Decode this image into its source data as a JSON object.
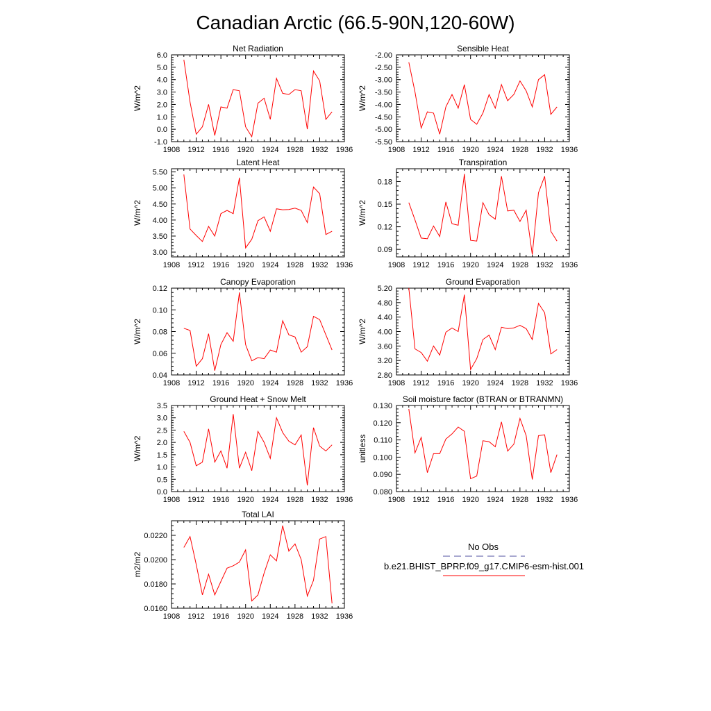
{
  "title": "Canadian Arctic (66.5-90N,120-60W)",
  "colors": {
    "model_line": "#ff0000",
    "obs_line": "#5050a0",
    "axes": "#000000"
  },
  "legend": {
    "obs_label": "No Obs",
    "model_label": "b.e21.BHIST_BPRP.f09_g17.CMIP6-esm-hist.001"
  },
  "chart_data": [
    {
      "type": "line",
      "title": "Net Radiation",
      "ylabel": "W/m^2",
      "xlim": [
        1908,
        1936
      ],
      "xticks": [
        1908,
        1912,
        1916,
        1920,
        1924,
        1928,
        1932,
        1936
      ],
      "ylim": [
        -1.0,
        6.0
      ],
      "yticks": [
        -1.0,
        0.0,
        1.0,
        2.0,
        3.0,
        4.0,
        5.0,
        6.0
      ],
      "ytick_labels": [
        "-1.0",
        "0.0",
        "1.0",
        "2.0",
        "3.0",
        "4.0",
        "5.0",
        "6.0"
      ],
      "series": [
        {
          "x": [
            1910,
            1911,
            1912,
            1913,
            1914,
            1915,
            1916,
            1917,
            1918,
            1919,
            1920,
            1921,
            1922,
            1923,
            1924,
            1925,
            1926,
            1927,
            1928,
            1929,
            1930,
            1931,
            1932,
            1933,
            1934
          ],
          "values": [
            5.6,
            2.2,
            -0.4,
            0.2,
            2.0,
            -0.5,
            1.8,
            1.7,
            3.2,
            3.1,
            0.2,
            -0.6,
            2.1,
            2.5,
            0.8,
            4.1,
            2.9,
            2.8,
            3.2,
            3.1,
            0.0,
            4.7,
            3.9,
            0.8,
            1.4
          ]
        }
      ]
    },
    {
      "type": "line",
      "title": "Sensible Heat",
      "ylabel": "W/m^2",
      "xlim": [
        1908,
        1936
      ],
      "xticks": [
        1908,
        1912,
        1916,
        1920,
        1924,
        1928,
        1932,
        1936
      ],
      "ylim": [
        -5.5,
        -2.0
      ],
      "yticks": [
        -5.5,
        -5.0,
        -4.5,
        -4.0,
        -3.5,
        -3.0,
        -2.5,
        -2.0
      ],
      "ytick_labels": [
        "-5.50",
        "-5.00",
        "-4.50",
        "-4.00",
        "-3.50",
        "-3.00",
        "-2.50",
        "-2.00"
      ],
      "series": [
        {
          "x": [
            1910,
            1911,
            1912,
            1913,
            1914,
            1915,
            1916,
            1917,
            1918,
            1919,
            1920,
            1921,
            1922,
            1923,
            1924,
            1925,
            1926,
            1927,
            1928,
            1929,
            1930,
            1931,
            1932,
            1933,
            1934
          ],
          "values": [
            -2.3,
            -3.5,
            -4.95,
            -4.3,
            -4.35,
            -5.2,
            -4.1,
            -3.6,
            -4.15,
            -3.2,
            -4.6,
            -4.8,
            -4.35,
            -3.6,
            -4.15,
            -3.2,
            -3.85,
            -3.6,
            -3.05,
            -3.45,
            -4.1,
            -3.0,
            -2.8,
            -4.4,
            -4.1
          ]
        }
      ]
    },
    {
      "type": "line",
      "title": "Latent Heat",
      "ylabel": "W/m^2",
      "xlim": [
        1908,
        1936
      ],
      "xticks": [
        1908,
        1912,
        1916,
        1920,
        1924,
        1928,
        1932,
        1936
      ],
      "ylim": [
        2.85,
        5.6
      ],
      "yticks": [
        3.0,
        3.5,
        4.0,
        4.5,
        5.0,
        5.5
      ],
      "ytick_labels": [
        "3.00",
        "3.50",
        "4.00",
        "4.50",
        "5.00",
        "5.50"
      ],
      "series": [
        {
          "x": [
            1910,
            1911,
            1912,
            1913,
            1914,
            1915,
            1916,
            1917,
            1918,
            1919,
            1920,
            1921,
            1922,
            1923,
            1924,
            1925,
            1926,
            1927,
            1928,
            1929,
            1930,
            1931,
            1932,
            1933,
            1934
          ],
          "values": [
            5.42,
            3.72,
            3.52,
            3.33,
            3.8,
            3.5,
            4.2,
            4.3,
            4.2,
            5.32,
            3.13,
            3.4,
            3.98,
            4.1,
            3.65,
            4.35,
            4.32,
            4.33,
            4.37,
            4.3,
            3.92,
            5.03,
            4.82,
            3.55,
            3.65
          ]
        }
      ]
    },
    {
      "type": "line",
      "title": "Transpiration",
      "ylabel": "W/m^2",
      "xlim": [
        1908,
        1936
      ],
      "xticks": [
        1908,
        1912,
        1916,
        1920,
        1924,
        1928,
        1932,
        1936
      ],
      "ylim": [
        0.08,
        0.197
      ],
      "yticks": [
        0.09,
        0.12,
        0.15,
        0.18
      ],
      "ytick_labels": [
        "0.09",
        "0.12",
        "0.15",
        "0.18"
      ],
      "series": [
        {
          "x": [
            1910,
            1911,
            1912,
            1913,
            1914,
            1915,
            1916,
            1917,
            1918,
            1919,
            1920,
            1921,
            1922,
            1923,
            1924,
            1925,
            1926,
            1927,
            1928,
            1929,
            1930,
            1931,
            1932,
            1933,
            1934
          ],
          "values": [
            0.152,
            0.129,
            0.105,
            0.104,
            0.121,
            0.107,
            0.153,
            0.124,
            0.122,
            0.19,
            0.102,
            0.101,
            0.152,
            0.136,
            0.13,
            0.187,
            0.141,
            0.142,
            0.127,
            0.142,
            0.083,
            0.165,
            0.187,
            0.114,
            0.101
          ]
        }
      ]
    },
    {
      "type": "line",
      "title": "Canopy Evaporation",
      "ylabel": "W/m^2",
      "xlim": [
        1908,
        1936
      ],
      "xticks": [
        1908,
        1912,
        1916,
        1920,
        1924,
        1928,
        1932,
        1936
      ],
      "ylim": [
        0.04,
        0.12
      ],
      "yticks": [
        0.04,
        0.06,
        0.08,
        0.1,
        0.12
      ],
      "ytick_labels": [
        "0.04",
        "0.06",
        "0.08",
        "0.10",
        "0.12"
      ],
      "series": [
        {
          "x": [
            1910,
            1911,
            1912,
            1913,
            1914,
            1915,
            1916,
            1917,
            1918,
            1919,
            1920,
            1921,
            1922,
            1923,
            1924,
            1925,
            1926,
            1927,
            1928,
            1929,
            1930,
            1931,
            1932,
            1933,
            1934
          ],
          "values": [
            0.083,
            0.081,
            0.048,
            0.055,
            0.078,
            0.044,
            0.068,
            0.079,
            0.071,
            0.116,
            0.068,
            0.053,
            0.056,
            0.055,
            0.063,
            0.061,
            0.09,
            0.077,
            0.075,
            0.061,
            0.066,
            0.094,
            0.091,
            0.077,
            0.063
          ]
        }
      ]
    },
    {
      "type": "line",
      "title": "Ground Evaporation",
      "ylabel": "W/m^2",
      "xlim": [
        1908,
        1936
      ],
      "xticks": [
        1908,
        1912,
        1916,
        1920,
        1924,
        1928,
        1932,
        1936
      ],
      "ylim": [
        2.8,
        5.2
      ],
      "yticks": [
        2.8,
        3.2,
        3.6,
        4.0,
        4.4,
        4.8,
        5.2
      ],
      "ytick_labels": [
        "2.80",
        "3.20",
        "3.60",
        "4.00",
        "4.40",
        "4.80",
        "5.20"
      ],
      "series": [
        {
          "x": [
            1910,
            1911,
            1912,
            1913,
            1914,
            1915,
            1916,
            1917,
            1918,
            1919,
            1920,
            1921,
            1922,
            1923,
            1924,
            1925,
            1926,
            1927,
            1928,
            1929,
            1930,
            1931,
            1932,
            1933,
            1934
          ],
          "values": [
            5.2,
            3.52,
            3.42,
            3.18,
            3.6,
            3.35,
            3.98,
            4.1,
            4.0,
            5.02,
            2.95,
            3.25,
            3.78,
            3.9,
            3.5,
            4.12,
            4.08,
            4.1,
            4.17,
            4.08,
            3.78,
            4.78,
            4.52,
            3.38,
            3.5
          ]
        }
      ]
    },
    {
      "type": "line",
      "title": "Ground Heat + Snow Melt",
      "ylabel": "W/m^2",
      "xlim": [
        1908,
        1936
      ],
      "xticks": [
        1908,
        1912,
        1916,
        1920,
        1924,
        1928,
        1932,
        1936
      ],
      "ylim": [
        0.0,
        3.5
      ],
      "yticks": [
        0.0,
        0.5,
        1.0,
        1.5,
        2.0,
        2.5,
        3.0,
        3.5
      ],
      "ytick_labels": [
        "0.0",
        "0.5",
        "1.0",
        "1.5",
        "2.0",
        "2.5",
        "3.0",
        "3.5"
      ],
      "series": [
        {
          "x": [
            1910,
            1911,
            1912,
            1913,
            1914,
            1915,
            1916,
            1917,
            1918,
            1919,
            1920,
            1921,
            1922,
            1923,
            1924,
            1925,
            1926,
            1927,
            1928,
            1929,
            1930,
            1931,
            1932,
            1933,
            1934
          ],
          "values": [
            2.45,
            2.0,
            1.05,
            1.2,
            2.55,
            1.2,
            1.65,
            0.95,
            3.15,
            0.95,
            1.6,
            0.85,
            2.45,
            2.0,
            1.35,
            3.0,
            2.4,
            2.05,
            1.9,
            2.3,
            0.25,
            2.6,
            1.85,
            1.65,
            1.9
          ]
        }
      ]
    },
    {
      "type": "line",
      "title": "Soil moisture factor (BTRAN or BTRANMN)",
      "ylabel": "unitless",
      "xlim": [
        1908,
        1936
      ],
      "xticks": [
        1908,
        1912,
        1916,
        1920,
        1924,
        1928,
        1932,
        1936
      ],
      "ylim": [
        0.08,
        0.13
      ],
      "yticks": [
        0.08,
        0.09,
        0.1,
        0.11,
        0.12,
        0.13
      ],
      "ytick_labels": [
        "0.080",
        "0.090",
        "0.100",
        "0.110",
        "0.120",
        "0.130"
      ],
      "series": [
        {
          "x": [
            1910,
            1911,
            1912,
            1913,
            1914,
            1915,
            1916,
            1917,
            1918,
            1919,
            1920,
            1921,
            1922,
            1923,
            1924,
            1925,
            1926,
            1927,
            1928,
            1929,
            1930,
            1931,
            1932,
            1933,
            1934
          ],
          "values": [
            0.128,
            0.1025,
            0.1115,
            0.091,
            0.102,
            0.102,
            0.1105,
            0.1135,
            0.1175,
            0.115,
            0.0875,
            0.089,
            0.1095,
            0.109,
            0.106,
            0.1205,
            0.1035,
            0.1075,
            0.1225,
            0.1125,
            0.087,
            0.1125,
            0.113,
            0.091,
            0.1015
          ]
        }
      ]
    },
    {
      "type": "line",
      "title": "Total LAI",
      "ylabel": "m2/m2",
      "xlim": [
        1908,
        1936
      ],
      "xticks": [
        1908,
        1912,
        1916,
        1920,
        1924,
        1928,
        1932,
        1936
      ],
      "ylim": [
        0.016,
        0.0232
      ],
      "yticks": [
        0.016,
        0.018,
        0.02,
        0.022
      ],
      "ytick_labels": [
        "0.0160",
        "0.0180",
        "0.0200",
        "0.0220"
      ],
      "series": [
        {
          "x": [
            1910,
            1911,
            1912,
            1913,
            1914,
            1915,
            1916,
            1917,
            1918,
            1919,
            1920,
            1921,
            1922,
            1923,
            1924,
            1925,
            1926,
            1927,
            1928,
            1929,
            1930,
            1931,
            1932,
            1933,
            1934
          ],
          "values": [
            0.021,
            0.0219,
            0.0196,
            0.0171,
            0.0188,
            0.0171,
            0.0182,
            0.0193,
            0.0195,
            0.0198,
            0.0208,
            0.0166,
            0.0171,
            0.0189,
            0.0204,
            0.0199,
            0.0228,
            0.0207,
            0.0213,
            0.02,
            0.017,
            0.0183,
            0.0217,
            0.0219,
            0.0164
          ]
        }
      ]
    }
  ]
}
